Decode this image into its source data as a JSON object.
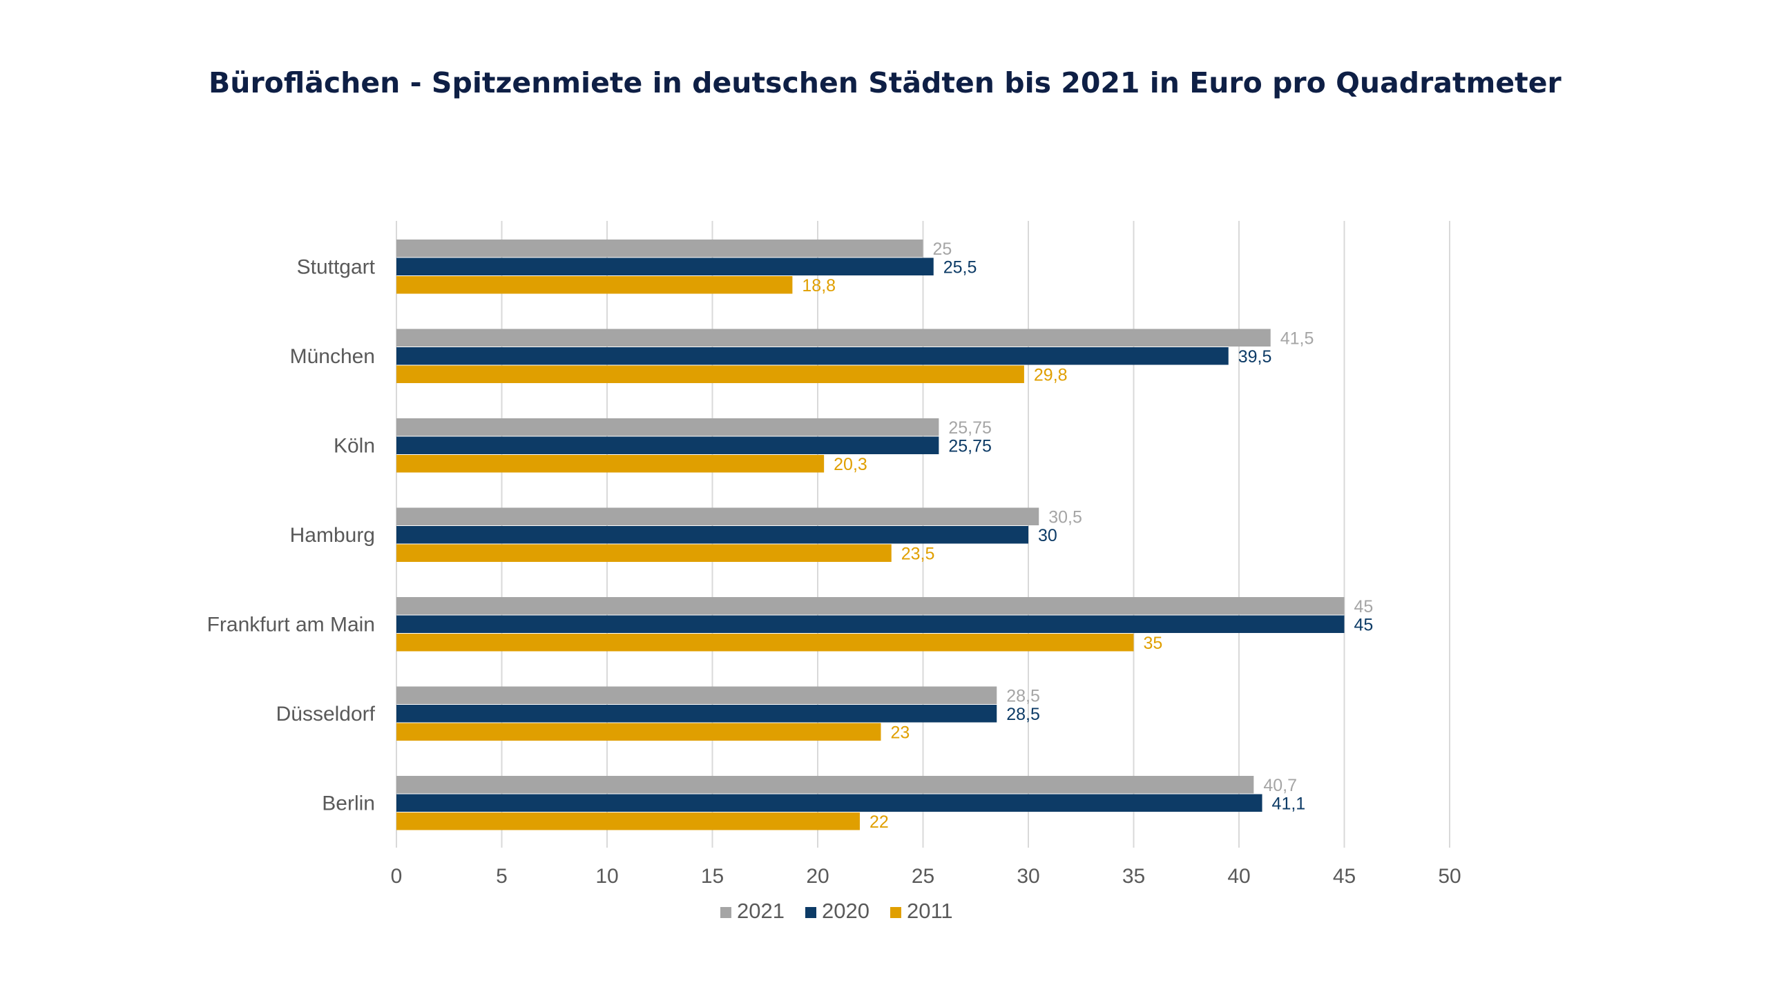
{
  "chart_data": {
    "type": "bar",
    "orientation": "horizontal",
    "title": "Büroflächen - Spitzenmiete in deutschen Städten bis 2021 in Euro pro Quadratmeter",
    "categories": [
      "Stuttgart",
      "München",
      "Köln",
      "Hamburg",
      "Frankfurt am Main",
      "Düsseldorf",
      "Berlin"
    ],
    "series": [
      {
        "name": "2021",
        "color": "#a5a5a5",
        "values": [
          25,
          41.5,
          25.75,
          30.5,
          45,
          28.5,
          40.7
        ],
        "labels": [
          "25",
          "41,5",
          "25,75",
          "30,5",
          "45",
          "28,5",
          "40,7"
        ]
      },
      {
        "name": "2020",
        "color": "#0d3b66",
        "values": [
          25.5,
          39.5,
          25.75,
          30,
          45,
          28.5,
          41.1
        ],
        "labels": [
          "25,5",
          "39,5",
          "25,75",
          "30",
          "45",
          "28,5",
          "41,1"
        ]
      },
      {
        "name": "2011",
        "color": "#e09f00",
        "values": [
          18.8,
          29.8,
          20.3,
          23.5,
          35,
          23,
          22
        ],
        "labels": [
          "18,8",
          "29,8",
          "20,3",
          "23,5",
          "35",
          "23",
          "22"
        ]
      }
    ],
    "xlim": [
      0,
      50
    ],
    "xticks": [
      "0",
      "5",
      "10",
      "15",
      "20",
      "25",
      "30",
      "35",
      "40",
      "45",
      "50"
    ],
    "grid": true,
    "legend_position": "bottom"
  }
}
